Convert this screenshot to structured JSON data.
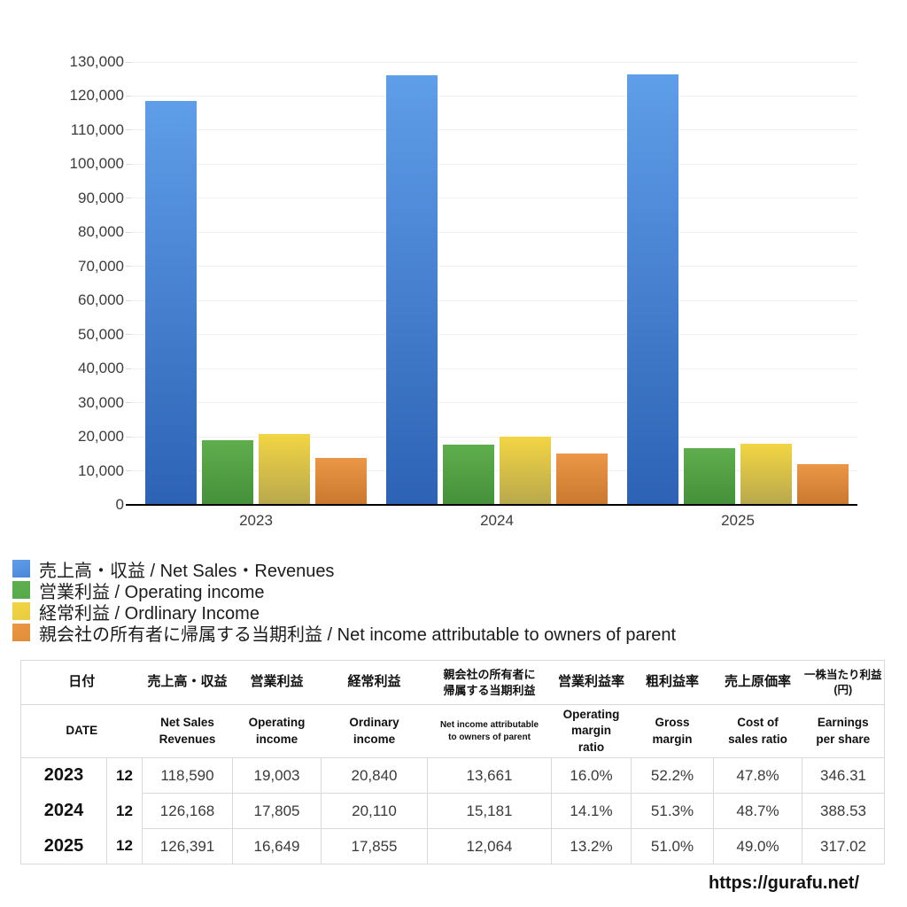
{
  "chart_data": {
    "type": "bar",
    "title": "",
    "xlabel": "",
    "ylabel": "",
    "categories": [
      "2023",
      "2024",
      "2025"
    ],
    "series": [
      {
        "name": "売上高・収益 / Net Sales・Revenues",
        "values": [
          118590,
          126168,
          126391
        ],
        "legend_color": "#4B86D9",
        "bar_top": "#5F9EE9",
        "bar_bottom": "#2D62B4"
      },
      {
        "name": "営業利益 / Operating income",
        "values": [
          19003,
          17805,
          16649
        ],
        "legend_color": "#57A94B",
        "bar_top": "#5FAE4D",
        "bar_bottom": "#45903A"
      },
      {
        "name": "経常利益 / Ordlinary Income",
        "values": [
          20840,
          20110,
          17855
        ],
        "legend_color": "#E8CC3F",
        "bar_top": "#F3D543",
        "bar_bottom": "#B8A84D"
      },
      {
        "name": "親会社の所有者に帰属する当期利益 / Net income attributable to owners of parent",
        "values": [
          13661,
          15181,
          12064
        ],
        "legend_color": "#E08D38",
        "bar_top": "#EB9747",
        "bar_bottom": "#C9782E"
      }
    ],
    "ylim": [
      0,
      130000
    ],
    "ytick_interval": 10000,
    "grid": true,
    "gridline_color": "#f0f0f0",
    "axis_color": "#000000",
    "legend_position": "bottom-left"
  },
  "table": {
    "header_jp": [
      [
        "日付"
      ],
      [
        "売上高・収益"
      ],
      [
        "営業利益"
      ],
      [
        "経常利益"
      ],
      [
        "親会社の所有者に",
        "帰属する当期利益"
      ],
      [
        "営業利益率"
      ],
      [
        "粗利益率"
      ],
      [
        "売上原価率"
      ],
      [
        "一株当たり利益",
        "(円)"
      ]
    ],
    "header_en": [
      [
        "DATE"
      ],
      [
        "Net Sales",
        "Revenues"
      ],
      [
        "Operating",
        "income"
      ],
      [
        "Ordinary",
        "income"
      ],
      [
        "Net income attributable",
        "to owners of parent"
      ],
      [
        "Operating",
        "margin",
        "ratio"
      ],
      [
        "Gross",
        "margin"
      ],
      [
        "Cost of",
        "sales ratio"
      ],
      [
        "Earnings",
        "per share"
      ]
    ],
    "rows": [
      {
        "year": "2023",
        "month": "12",
        "values": [
          "118,590",
          "19,003",
          "20,840",
          "13,661",
          "16.0%",
          "52.2%",
          "47.8%",
          "346.31"
        ]
      },
      {
        "year": "2024",
        "month": "12",
        "values": [
          "126,168",
          "17,805",
          "20,110",
          "15,181",
          "14.1%",
          "51.3%",
          "48.7%",
          "388.53"
        ]
      },
      {
        "year": "2025",
        "month": "12",
        "values": [
          "126,391",
          "16,649",
          "17,855",
          "12,064",
          "13.2%",
          "51.0%",
          "49.0%",
          "317.02"
        ]
      }
    ]
  },
  "footer": {
    "url": "https://gurafu.net/"
  }
}
